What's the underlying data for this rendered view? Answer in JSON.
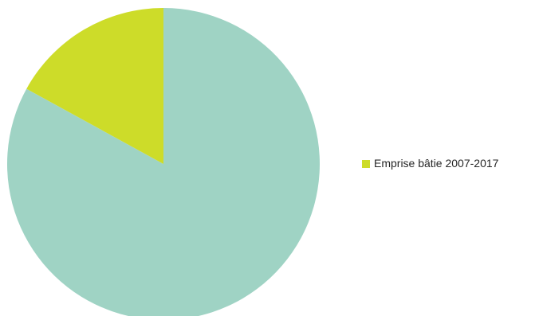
{
  "chart_data": {
    "type": "pie",
    "title": "",
    "start_angle_deg": 0,
    "direction": "clockwise",
    "slices": [
      {
        "label": "",
        "value": 83,
        "color": "#9FD3C4"
      },
      {
        "label": "Emprise bâtie 2007-2017",
        "value": 17,
        "color": "#CDDC29"
      }
    ],
    "legend": {
      "position": "right",
      "entries": [
        {
          "label": "Emprise bâtie 2007-2017",
          "color": "#CDDC29"
        }
      ]
    }
  }
}
